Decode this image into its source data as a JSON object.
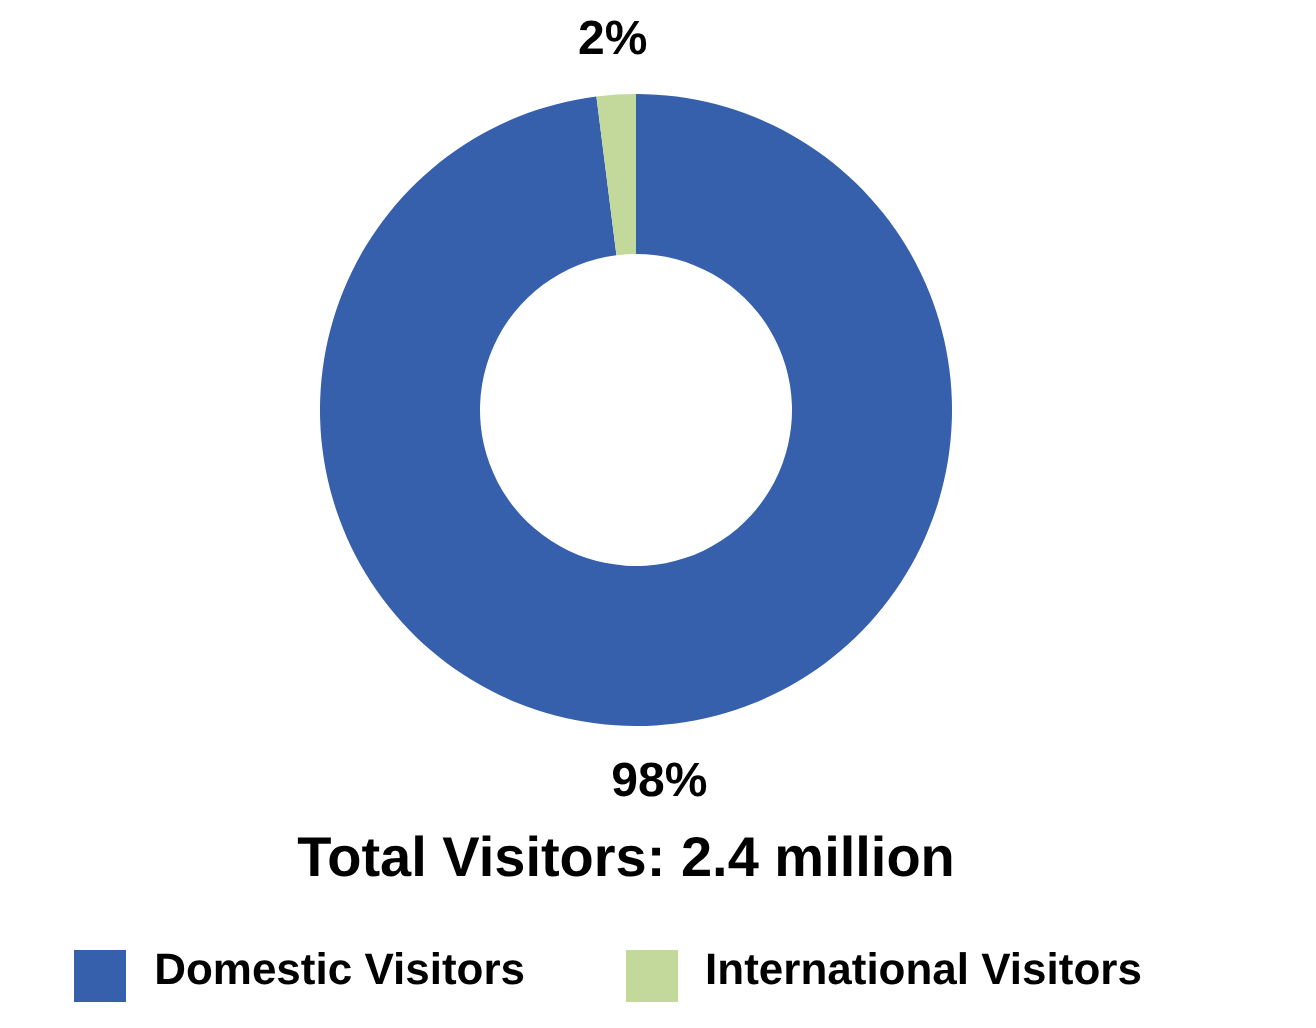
{
  "chart_data": {
    "type": "donut",
    "title": "Total Visitors: 2.4 million",
    "categories": [
      "Domestic Visitors",
      "International Visitors"
    ],
    "values": [
      98,
      2
    ],
    "colors": [
      "#365fac",
      "#c3d99b"
    ],
    "value_labels": [
      "98%",
      "2%"
    ],
    "legend": "bottom"
  }
}
